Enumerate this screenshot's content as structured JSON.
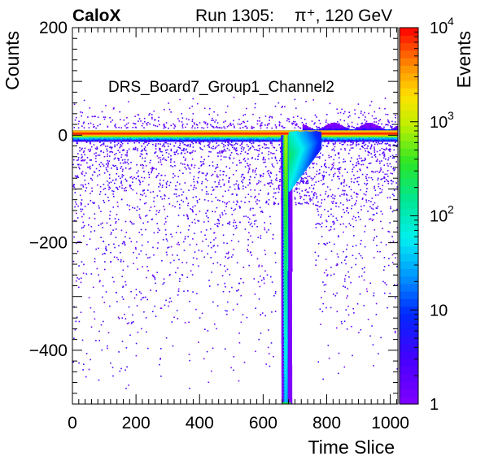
{
  "header": {
    "experiment": "CaloX",
    "run": "Run 1305:",
    "beam": "π⁺, 120 GeV"
  },
  "chart_data": {
    "type": "heatmap",
    "title": "DRS_Board7_Group1_Channel2",
    "xlabel": "Time Slice",
    "ylabel": "Counts",
    "zlabel": "Events",
    "xlim": [
      0,
      1024
    ],
    "ylim": [
      -500,
      200
    ],
    "zlim": [
      1,
      10000
    ],
    "z_scale": "log",
    "x_ticks": [
      "0",
      "200",
      "400",
      "600",
      "800",
      "1000"
    ],
    "y_ticks": [
      "200",
      "0",
      "−200",
      "−400"
    ],
    "z_ticks": [
      {
        "base": "10",
        "exp": "4"
      },
      {
        "base": "10",
        "exp": "3"
      },
      {
        "base": "10",
        "exp": "2"
      },
      {
        "base": "10",
        "exp": ""
      },
      {
        "base": "1",
        "exp": ""
      }
    ],
    "features": {
      "baseline_counts": 0,
      "baseline_band": [
        -5,
        12
      ],
      "pulse_start_slice": 660,
      "pulse_end_slice": 680,
      "pulse_min_counts": -500,
      "pulse_peak_events": 1000
    }
  }
}
